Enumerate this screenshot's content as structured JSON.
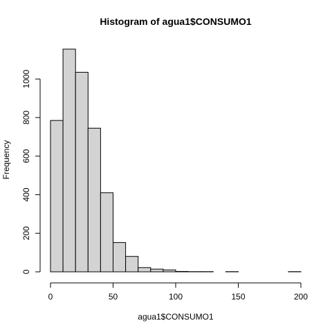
{
  "chart_data": {
    "type": "bar",
    "title": "Histogram of agua1$CONSUMO1",
    "xlabel": "agua1$CONSUMO1",
    "ylabel": "Frequency",
    "bins": [
      {
        "start": 0,
        "end": 10,
        "count": 785
      },
      {
        "start": 10,
        "end": 20,
        "count": 1155
      },
      {
        "start": 20,
        "end": 30,
        "count": 1035
      },
      {
        "start": 30,
        "end": 40,
        "count": 745
      },
      {
        "start": 40,
        "end": 50,
        "count": 410
      },
      {
        "start": 50,
        "end": 60,
        "count": 152
      },
      {
        "start": 60,
        "end": 70,
        "count": 80
      },
      {
        "start": 70,
        "end": 80,
        "count": 22
      },
      {
        "start": 80,
        "end": 90,
        "count": 14
      },
      {
        "start": 90,
        "end": 100,
        "count": 10
      },
      {
        "start": 100,
        "end": 110,
        "count": 2
      },
      {
        "start": 110,
        "end": 120,
        "count": 1
      },
      {
        "start": 120,
        "end": 130,
        "count": 1
      },
      {
        "start": 130,
        "end": 140,
        "count": 0
      },
      {
        "start": 140,
        "end": 150,
        "count": 1
      },
      {
        "start": 150,
        "end": 160,
        "count": 0
      },
      {
        "start": 160,
        "end": 170,
        "count": 0
      },
      {
        "start": 170,
        "end": 180,
        "count": 0
      },
      {
        "start": 180,
        "end": 190,
        "count": 0
      },
      {
        "start": 190,
        "end": 200,
        "count": 1
      }
    ],
    "xlim": [
      0,
      200
    ],
    "ylim": [
      0,
      1155
    ],
    "xticks": [
      0,
      50,
      100,
      150,
      200
    ],
    "yticks": [
      0,
      200,
      400,
      600,
      800,
      1000
    ],
    "bar_color": "#d3d3d3",
    "edge_color": "#000000",
    "grid": false,
    "legend": "none"
  }
}
